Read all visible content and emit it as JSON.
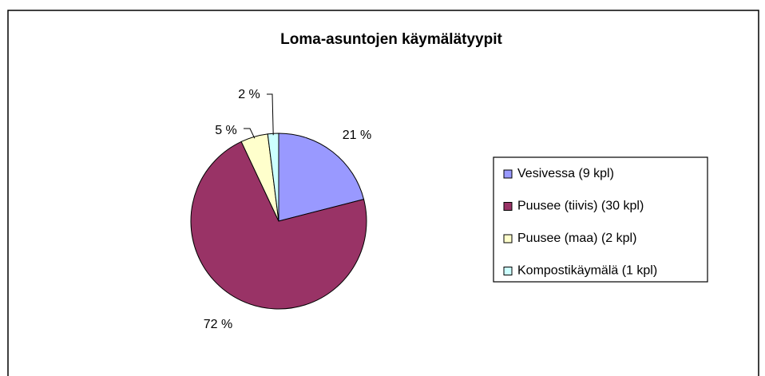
{
  "chart_data": {
    "type": "pie",
    "title": "Loma-asuntojen käymälätyypit",
    "categories": [
      "Vesivessa (9 kpl)",
      "Puusee (tiivis) (30 kpl)",
      "Puusee (maa) (2 kpl)",
      "Kompostikäymälä (1 kpl)"
    ],
    "values": [
      21,
      72,
      5,
      2
    ],
    "value_labels": [
      "21 %",
      "72 %",
      "5 %",
      "2 %"
    ],
    "colors": [
      "#9999ff",
      "#993366",
      "#ffffcc",
      "#ccffff"
    ],
    "legend": "right"
  }
}
